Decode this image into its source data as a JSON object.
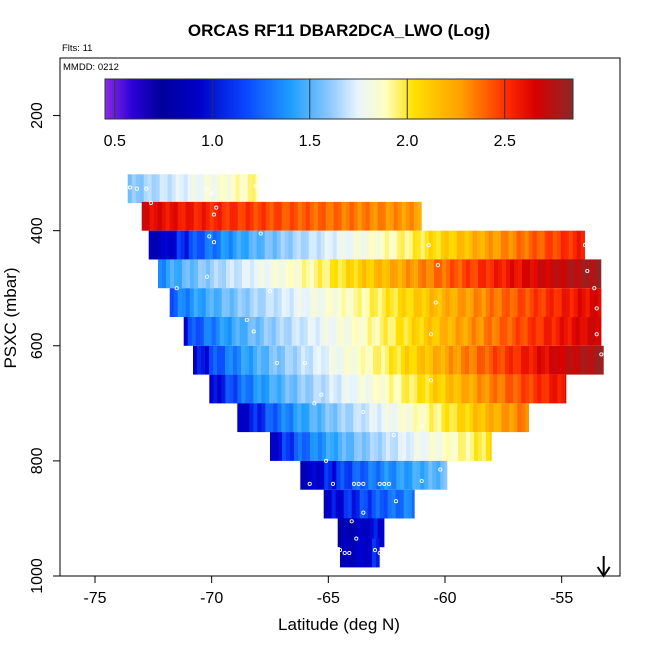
{
  "chart_data": {
    "type": "heatmap",
    "title": "ORCAS RF11 DBAR2DCA_LWO (Log)",
    "flts_label": "Flts: 11",
    "mmdd_label": "MMDD: 0212",
    "xlabel": "Latitude (deg N)",
    "ylabel": "PSXC (mbar)",
    "xlim": [
      -76.5,
      -52.5
    ],
    "ylim": [
      1000,
      100
    ],
    "x_ticks": [
      -75,
      -70,
      -65,
      -60,
      -55
    ],
    "x_tick_labels": [
      "-75",
      "-70",
      "-65",
      "-60",
      "-55"
    ],
    "y_ticks": [
      200,
      400,
      600,
      800,
      1000
    ],
    "y_tick_labels": [
      "200",
      "400",
      "600",
      "800",
      "1000"
    ],
    "colorbar": {
      "range": [
        0.45,
        2.85
      ],
      "ticks": [
        0.5,
        1.0,
        1.5,
        2.0,
        2.5
      ],
      "tick_labels": [
        "0.5",
        "1.0",
        "1.5",
        "2.0",
        "2.5"
      ]
    },
    "arrow_latitude": -53.2,
    "rows": [
      {
        "p": 327,
        "x0": -73.6,
        "x1": -68.0,
        "v0": 1.4,
        "v1": 1.9
      },
      {
        "p": 375,
        "x0": -73.0,
        "x1": -61.0,
        "v0": 2.6,
        "v1": 2.2
      },
      {
        "p": 425,
        "x0": -72.7,
        "x1": -54.0,
        "v0": 0.8,
        "v1": 2.5
      },
      {
        "p": 475,
        "x0": -72.3,
        "x1": -53.3,
        "v0": 1.2,
        "v1": 2.8
      },
      {
        "p": 525,
        "x0": -71.8,
        "x1": -53.3,
        "v0": 1.1,
        "v1": 2.6
      },
      {
        "p": 575,
        "x0": -71.2,
        "x1": -53.3,
        "v0": 1.0,
        "v1": 2.65
      },
      {
        "p": 625,
        "x0": -70.8,
        "x1": -53.2,
        "v0": 0.9,
        "v1": 2.8
      },
      {
        "p": 675,
        "x0": -70.1,
        "x1": -54.8,
        "v0": 0.9,
        "v1": 2.55
      },
      {
        "p": 725,
        "x0": -68.9,
        "x1": -56.4,
        "v0": 0.85,
        "v1": 2.3
      },
      {
        "p": 775,
        "x0": -67.5,
        "x1": -58.0,
        "v0": 0.9,
        "v1": 2.0
      },
      {
        "p": 825,
        "x0": -66.2,
        "x1": -59.9,
        "v0": 0.85,
        "v1": 1.4
      },
      {
        "p": 875,
        "x0": -65.2,
        "x1": -61.3,
        "v0": 0.9,
        "v1": 1.2
      },
      {
        "p": 925,
        "x0": -64.6,
        "x1": -62.6,
        "v0": 0.75,
        "v1": 1.0
      },
      {
        "p": 960,
        "x0": -64.5,
        "x1": -62.8,
        "v0": 0.8,
        "v1": 1.0
      }
    ],
    "dots": [
      [
        -73.5,
        325
      ],
      [
        -73.2,
        327
      ],
      [
        -72.8,
        327
      ],
      [
        -72.6,
        352
      ],
      [
        -70.2,
        327
      ],
      [
        -70.0,
        335
      ],
      [
        -68.1,
        322
      ],
      [
        -69.8,
        360
      ],
      [
        -69.9,
        372
      ],
      [
        -70.1,
        410
      ],
      [
        -69.9,
        420
      ],
      [
        -67.9,
        405
      ],
      [
        -60.7,
        425
      ],
      [
        -54.0,
        425
      ],
      [
        -60.3,
        460
      ],
      [
        -53.9,
        470
      ],
      [
        -53.6,
        500
      ],
      [
        -70.2,
        480
      ],
      [
        -67.5,
        505
      ],
      [
        -71.5,
        500
      ],
      [
        -60.4,
        525
      ],
      [
        -53.5,
        535
      ],
      [
        -68.5,
        555
      ],
      [
        -68.2,
        575
      ],
      [
        -60.6,
        580
      ],
      [
        -53.5,
        580
      ],
      [
        -67.2,
        630
      ],
      [
        -66.0,
        630
      ],
      [
        -53.3,
        615
      ],
      [
        -60.6,
        660
      ],
      [
        -65.6,
        700
      ],
      [
        -65.3,
        685
      ],
      [
        -61.0,
        740
      ],
      [
        -62.2,
        755
      ],
      [
        -63.5,
        715
      ],
      [
        -65.1,
        800
      ],
      [
        -60.2,
        815
      ],
      [
        -64.8,
        840
      ],
      [
        -65.8,
        840
      ],
      [
        -63.9,
        840
      ],
      [
        -63.7,
        840
      ],
      [
        -63.5,
        840
      ],
      [
        -62.8,
        840
      ],
      [
        -62.6,
        840
      ],
      [
        -62.4,
        840
      ],
      [
        -61.0,
        835
      ],
      [
        -62.1,
        870
      ],
      [
        -63.5,
        890
      ],
      [
        -64.0,
        905
      ],
      [
        -63.8,
        935
      ],
      [
        -64.5,
        955
      ],
      [
        -64.3,
        960
      ],
      [
        -64.1,
        960
      ],
      [
        -63.0,
        955
      ],
      [
        -62.8,
        960
      ]
    ]
  }
}
